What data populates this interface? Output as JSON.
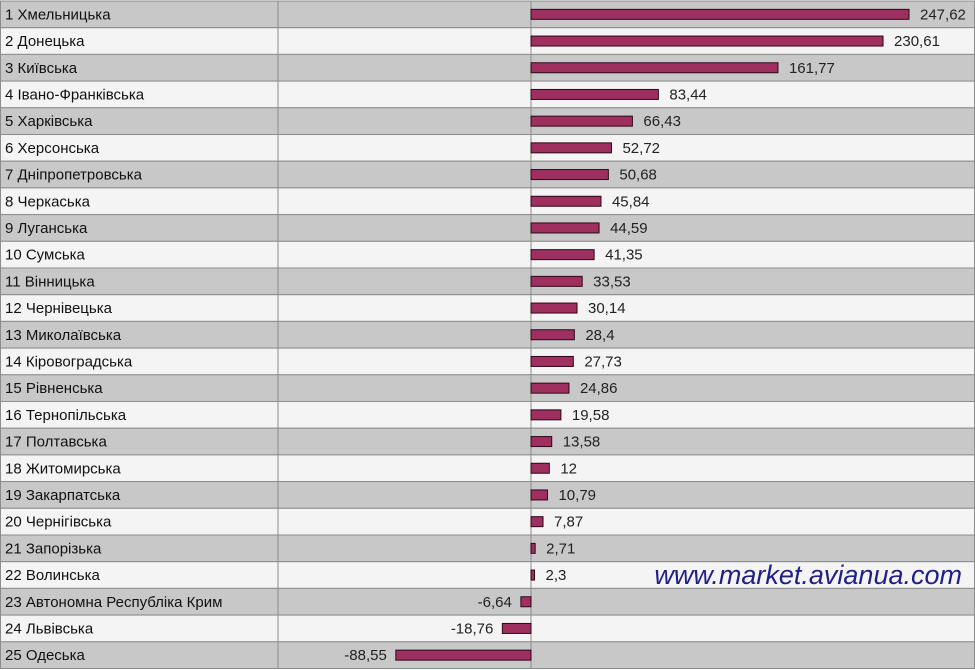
{
  "colors": {
    "bar": "#9e2f5e",
    "row_dark": "#c8c8c8",
    "row_light": "#f4f4f4",
    "grid": "#8c8c8c",
    "watermark": "#1f1f8a"
  },
  "watermark": "www.market.avianua.com",
  "chart_data": {
    "type": "bar",
    "orientation": "horizontal",
    "categories": [
      "1 Хмельницька",
      "2 Донецька",
      "3 Київська",
      "4 Івано-Франківська",
      "5 Харківська",
      "6 Херсонська",
      "7 Дніпропетровська",
      "8 Черкаська",
      "9 Луганська",
      "10 Сумська",
      "11 Вінницька",
      "12 Чернівецька",
      "13 Миколаївська",
      "14 Кіровоградська",
      "15 Рівненська",
      "16 Тернопільська",
      "17 Полтавська",
      "18 Житомирська",
      "19 Закарпатська",
      "20 Чернігівська",
      "21 Запорізька",
      "22 Волинська",
      "23 Автономна Республіка Крим",
      "24 Львівська",
      "25 Одеська"
    ],
    "values": [
      247.62,
      230.61,
      161.77,
      83.44,
      66.43,
      52.72,
      50.68,
      45.84,
      44.59,
      41.35,
      33.53,
      30.14,
      28.4,
      27.73,
      24.86,
      19.58,
      13.58,
      12,
      10.79,
      7.87,
      2.71,
      2.3,
      -6.64,
      -18.76,
      -88.55
    ],
    "value_labels": [
      "247,62",
      "230,61",
      "161,77",
      "83,44",
      "66,43",
      "52,72",
      "50,68",
      "45,84",
      "44,59",
      "41,35",
      "33,53",
      "30,14",
      "28,4",
      "27,73",
      "24,86",
      "19,58",
      "13,58",
      "12",
      "10,79",
      "7,87",
      "2,71",
      "2,3",
      "-6,64",
      "-18,76",
      "-88,55"
    ],
    "xlim": [
      -120,
      270
    ],
    "grid": "rows",
    "legend": "none"
  }
}
